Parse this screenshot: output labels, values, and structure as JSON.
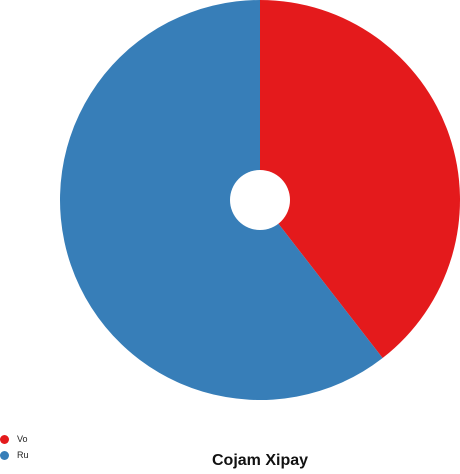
{
  "chart_data": {
    "type": "pie",
    "title": "Cojam Xipay",
    "legend_position": "bottom-left",
    "donut_hole": true,
    "slices": [
      {
        "label": "Vo",
        "value": 39.5,
        "color": "#e41a1c"
      },
      {
        "label": "Ru",
        "value": 60.5,
        "color": "#377eb8"
      }
    ]
  }
}
